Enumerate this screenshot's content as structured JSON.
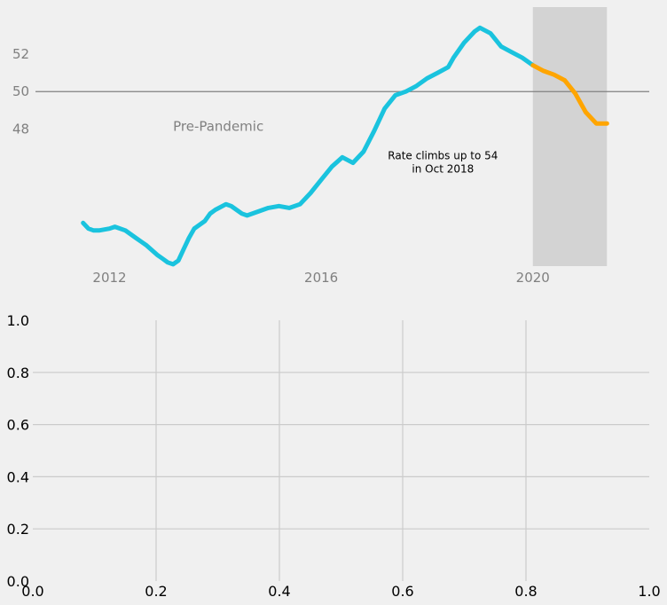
{
  "colors": {
    "background": "#f0f0f0",
    "pre_series": "#1ac3de",
    "pandemic_series": "#ffa500",
    "pandemic_band": "#d3d3d3",
    "reference_line": "#808080",
    "grid": "#cbcbcb",
    "top_tick_text": "#808080",
    "bottom_tick_text": "#000000"
  },
  "chart_data": [
    {
      "type": "line",
      "title": "",
      "xlabel": "",
      "ylabel": "",
      "xlim": [
        2010.6,
        2022.2
      ],
      "ylim": [
        40.7,
        54.5
      ],
      "grid": false,
      "x_ticks": [
        2012,
        2016,
        2020
      ],
      "x_tick_labels": [
        "2012",
        "2016",
        "2020"
      ],
      "y_ticks": [
        48,
        50,
        52
      ],
      "y_tick_labels": [
        "48",
        "50",
        "52"
      ],
      "reference_line_y": 50,
      "shaded_band_x": [
        2020.0,
        2021.4
      ],
      "annotations": [
        {
          "text": "Pre-Pandemic",
          "x": 2013.2,
          "y": 47.9
        },
        {
          "text_lines": [
            "Rate climbs up to 54",
            "in Oct 2018"
          ],
          "x": 2018.3,
          "y": 46.4
        }
      ],
      "series": [
        {
          "segment": "pre-pandemic",
          "x": [
            2011.5,
            2011.6,
            2011.7,
            2011.8,
            2012.0,
            2012.1,
            2012.3,
            2012.5,
            2012.6,
            2012.7,
            2012.9,
            2013.0,
            2013.1,
            2013.2,
            2013.3,
            2013.4,
            2013.5,
            2013.6,
            2013.8,
            2013.9,
            2014.0,
            2014.2,
            2014.3,
            2014.5,
            2014.6,
            2014.8,
            2015.0,
            2015.2,
            2015.4,
            2015.6,
            2015.8,
            2016.0,
            2016.2,
            2016.4,
            2016.6,
            2016.8,
            2017.0,
            2017.2,
            2017.4,
            2017.6,
            2017.8,
            2018.0,
            2018.2,
            2018.4,
            2018.5,
            2018.7,
            2018.9,
            2019.0,
            2019.2,
            2019.4,
            2019.6,
            2019.8,
            2020.0
          ],
          "y": [
            43.0,
            42.7,
            42.6,
            42.6,
            42.7,
            42.8,
            42.6,
            42.2,
            42.0,
            41.8,
            41.3,
            41.1,
            40.9,
            40.8,
            41.0,
            41.6,
            42.2,
            42.7,
            43.1,
            43.5,
            43.7,
            44.0,
            43.9,
            43.5,
            43.4,
            43.6,
            43.8,
            43.9,
            43.8,
            44.0,
            44.6,
            45.3,
            46.0,
            46.5,
            46.2,
            46.8,
            47.9,
            49.1,
            49.8,
            50.0,
            50.3,
            50.7,
            51.0,
            51.3,
            51.8,
            52.6,
            53.2,
            53.4,
            53.1,
            52.4,
            52.1,
            51.8,
            51.4
          ]
        },
        {
          "segment": "pandemic",
          "x": [
            2020.0,
            2020.2,
            2020.4,
            2020.6,
            2020.8,
            2021.0,
            2021.2,
            2021.4
          ],
          "y": [
            51.4,
            51.1,
            50.9,
            50.6,
            49.9,
            48.9,
            48.3,
            48.3
          ]
        }
      ]
    },
    {
      "type": "line",
      "title": "",
      "xlabel": "",
      "ylabel": "",
      "xlim": [
        0.0,
        1.0
      ],
      "ylim": [
        0.0,
        1.0
      ],
      "grid": true,
      "x_tick_labels": [
        "0.0",
        "0.2",
        "0.4",
        "0.6",
        "0.8",
        "1.0"
      ],
      "y_tick_labels": [
        "0.0",
        "0.2",
        "0.4",
        "0.6",
        "0.8",
        "1.0"
      ],
      "series": []
    }
  ]
}
